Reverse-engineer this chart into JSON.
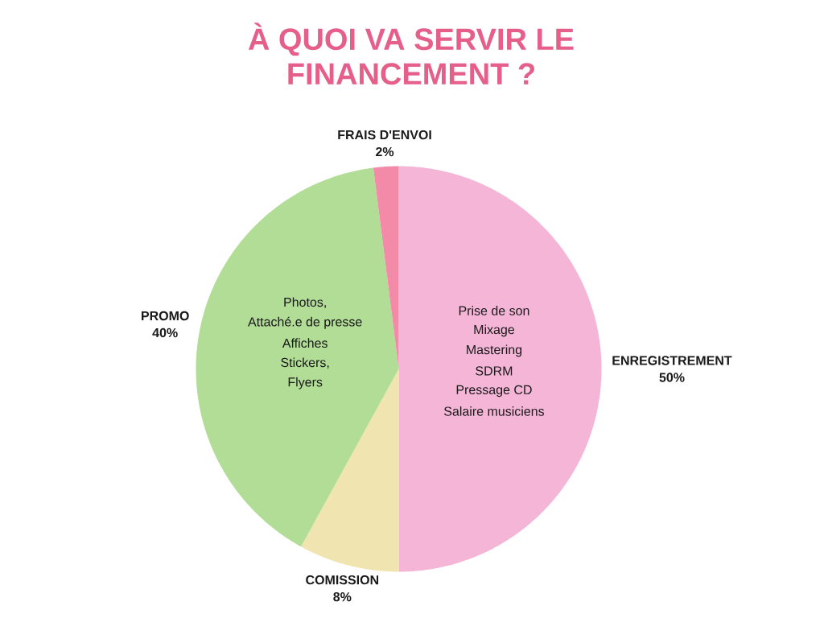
{
  "chart_data": {
    "type": "pie",
    "title": "À QUOI VA SERVIR LE FINANCEMENT ?",
    "categories": [
      "ENREGISTREMENT",
      "COMISSION",
      "PROMO",
      "FRAIS D'ENVOI"
    ],
    "values": [
      50,
      8,
      40,
      2
    ],
    "value_labels": [
      "50%",
      "8%",
      "40%",
      "2%"
    ],
    "colors": [
      "#f4b5d7",
      "#f0e4b0",
      "#b2dd97",
      "#f28aa8"
    ],
    "annotations": [
      {
        "text": "Prise de son",
        "x": "ENREGISTREMENT"
      },
      {
        "text": "Mixage",
        "x": "ENREGISTREMENT"
      },
      {
        "text": "Mastering",
        "x": "ENREGISTREMENT"
      },
      {
        "text": "SDRM",
        "x": "ENREGISTREMENT"
      },
      {
        "text": "Pressage CD",
        "x": "ENREGISTREMENT"
      },
      {
        "text": "Salaire musiciens",
        "x": "ENREGISTREMENT"
      },
      {
        "text": "Photos,",
        "x": "PROMO"
      },
      {
        "text": "Attaché.e de presse",
        "x": "PROMO"
      },
      {
        "text": "Affiches",
        "x": "PROMO"
      },
      {
        "text": "Stickers,",
        "x": "PROMO"
      },
      {
        "text": "Flyers",
        "x": "PROMO"
      }
    ]
  }
}
